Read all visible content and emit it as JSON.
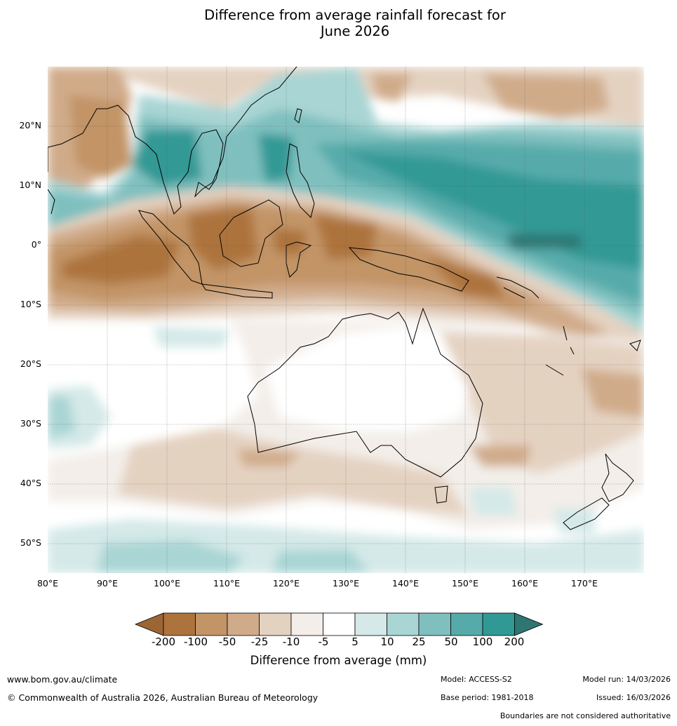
{
  "title": {
    "line1": "Difference from average rainfall forecast for",
    "line2": "June 2026"
  },
  "map": {
    "extent_lon": [
      80,
      180
    ],
    "extent_lat": [
      -55,
      30
    ],
    "lat_labels": [
      "20°N",
      "10°N",
      "0°",
      "10°S",
      "20°S",
      "30°S",
      "40°S",
      "50°S"
    ],
    "lon_labels": [
      "80°E",
      "90°E",
      "100°E",
      "110°E",
      "120°E",
      "130°E",
      "140°E",
      "150°E",
      "160°E",
      "170°E"
    ]
  },
  "legend": {
    "ticks": [
      "-200",
      "-100",
      "-50",
      "-25",
      "-10",
      "-5",
      "5",
      "10",
      "25",
      "50",
      "100",
      "200"
    ],
    "colors": [
      "#9c6634",
      "#ad733c",
      "#c29466",
      "#d0ab8a",
      "#e4d2c1",
      "#f3eee9",
      "#ffffff",
      "#d4e9e8",
      "#a9d5d4",
      "#7fc0bf",
      "#56abaa",
      "#309995",
      "#2e7672"
    ],
    "label": "Difference from average (mm)"
  },
  "footer": {
    "url": "www.bom.gov.au/climate",
    "copyright": "© Commonwealth of Australia 2026, Australian Bureau of Meteorology",
    "model": "Model: ACCESS-S2",
    "base_period": "Base period: 1981-2018",
    "model_run": "Model run: 14/03/2026",
    "issued": "Issued: 16/03/2026",
    "disclaimer": "Boundaries are not considered authoritative"
  }
}
